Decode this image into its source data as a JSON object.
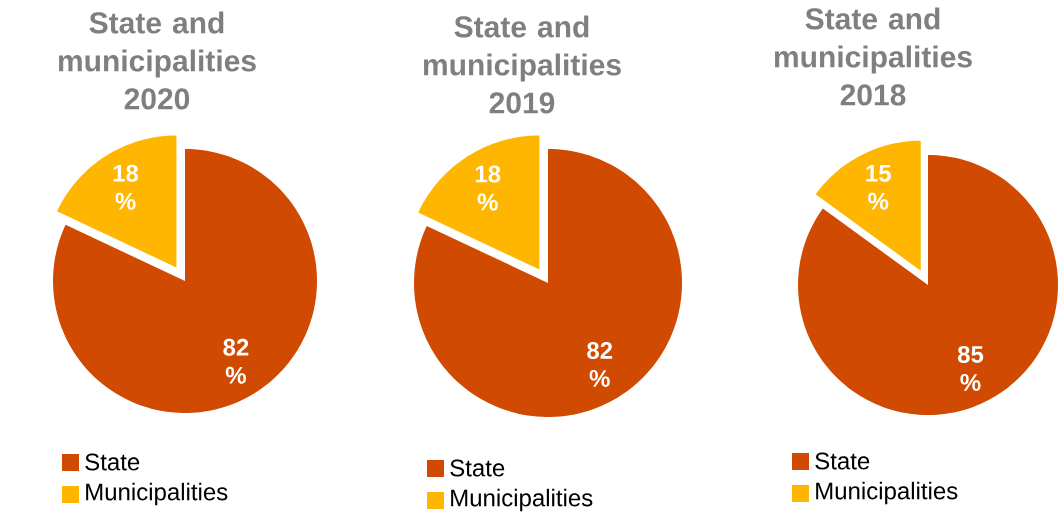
{
  "chart_data": [
    {
      "type": "pie",
      "title": "State and municipalities 2020",
      "categories": [
        "State",
        "Municipalities"
      ],
      "values": [
        82,
        18
      ],
      "colors": [
        "#d04a02",
        "#ffb600"
      ],
      "value_labels": [
        "82 %",
        "18 %"
      ],
      "legend": "bottom"
    },
    {
      "type": "pie",
      "title": "State and municipalities 2019",
      "categories": [
        "State",
        "Municipalities"
      ],
      "values": [
        82,
        18
      ],
      "colors": [
        "#d04a02",
        "#ffb600"
      ],
      "value_labels": [
        "82 %",
        "18 %"
      ],
      "legend": "bottom"
    },
    {
      "type": "pie",
      "title": "State and municipalities 2018",
      "categories": [
        "State",
        "Municipalities"
      ],
      "values": [
        85,
        15
      ],
      "colors": [
        "#d04a02",
        "#ffb600"
      ],
      "value_labels": [
        "85 %",
        "15 %"
      ],
      "legend": "bottom"
    }
  ]
}
